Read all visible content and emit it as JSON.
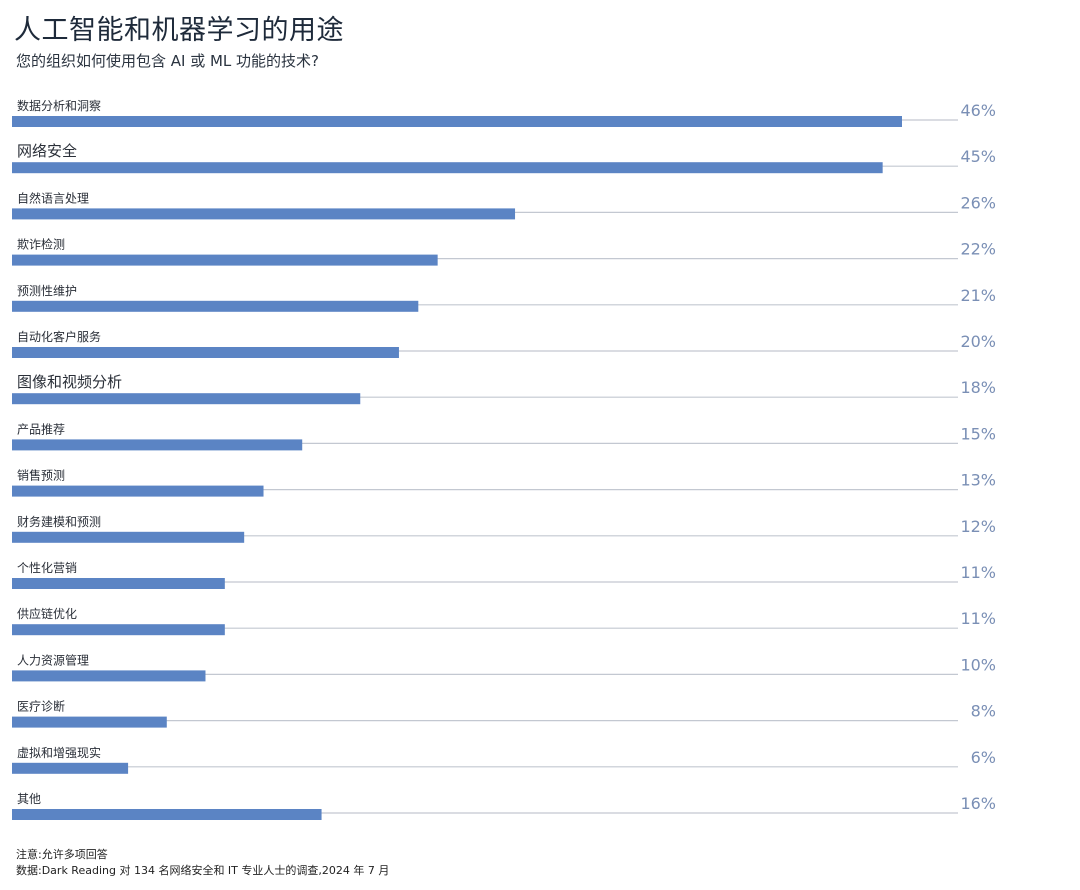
{
  "header": {
    "title": "人工智能和机器学习的用途",
    "subtitle": "您的组织如何使用包含 AI 或 ML 功能的技术?"
  },
  "chart_data": {
    "type": "bar",
    "orientation": "horizontal",
    "value_suffix": "%",
    "xlim": [
      0,
      46
    ],
    "bar_color": "#5b84c4",
    "track_color": "#c3c8d1",
    "label_color": "#7a8fb5",
    "categories": [
      "数据分析和洞察",
      "网络安全",
      "自然语言处理",
      "欺诈检测",
      "预测性维护",
      "自动化客户服务",
      "图像和视频分析",
      "产品推荐",
      "销售预测",
      "财务建模和预测",
      "个性化营销",
      "供应链优化",
      "人力资源管理",
      "医疗诊断",
      "虚拟和增强现实",
      "其他"
    ],
    "values": [
      46,
      45,
      26,
      22,
      21,
      20,
      18,
      15,
      13,
      12,
      11,
      11,
      10,
      8,
      6,
      16
    ],
    "value_labels": [
      "46%",
      "45%",
      "26%",
      "22%",
      "21%",
      "20%",
      "18%",
      "15%",
      "13%",
      "12%",
      "11%",
      "11%",
      "10%",
      "8%",
      "6%",
      "16%"
    ]
  },
  "notes": {
    "note": "注意:允许多项回答",
    "source": "数据:Dark Reading 对 134 名网络安全和 IT 专业人士的调查,2024 年 7 月"
  }
}
